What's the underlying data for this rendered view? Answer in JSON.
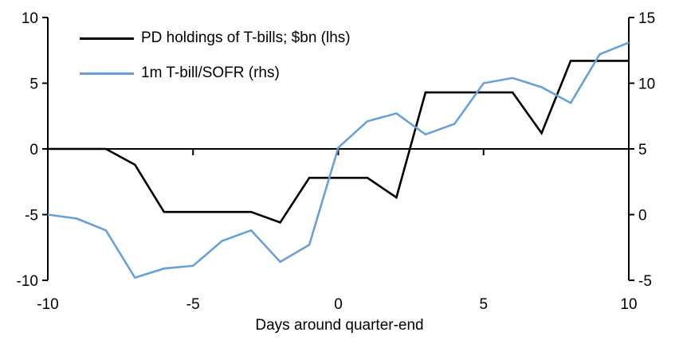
{
  "chart_data": {
    "type": "line",
    "title": "",
    "xlabel": "Days around quarter-end",
    "x": [
      -10,
      -9,
      -8,
      -7,
      -6,
      -5,
      -4,
      -3,
      -2,
      -1,
      0,
      1,
      2,
      3,
      4,
      5,
      6,
      7,
      8,
      9,
      10
    ],
    "series": [
      {
        "name": "PD holdings of T-bills; $bn (lhs)",
        "axis": "left",
        "color": "#000000",
        "values": [
          0,
          0,
          0,
          -1.2,
          -4.8,
          -4.8,
          -4.8,
          -4.8,
          -5.6,
          -2.2,
          -2.2,
          -2.2,
          -3.7,
          4.3,
          4.3,
          4.3,
          4.3,
          1.2,
          6.7,
          6.7,
          6.7
        ]
      },
      {
        "name": "1m T-bill/SOFR (rhs)",
        "axis": "right",
        "color": "#68A0D8",
        "values": [
          0.0,
          -0.3,
          -1.2,
          -4.8,
          -4.1,
          -3.9,
          -2.0,
          -1.2,
          -3.6,
          -2.3,
          5.1,
          7.1,
          7.7,
          6.1,
          6.9,
          10.0,
          10.4,
          9.7,
          8.5,
          12.2,
          13.1
        ]
      }
    ],
    "left_axis": {
      "min": -10,
      "max": 10,
      "ticks": [
        10,
        5,
        0,
        -5,
        -10
      ]
    },
    "right_axis": {
      "min": -5,
      "max": 15,
      "ticks": [
        15,
        10,
        5,
        0,
        -5
      ]
    },
    "x_axis": {
      "min": -10,
      "max": 10,
      "ticks": [
        -10,
        -5,
        0,
        5,
        10
      ]
    },
    "legend_position": "top-left",
    "grid": false,
    "axis_color": "#000000"
  }
}
